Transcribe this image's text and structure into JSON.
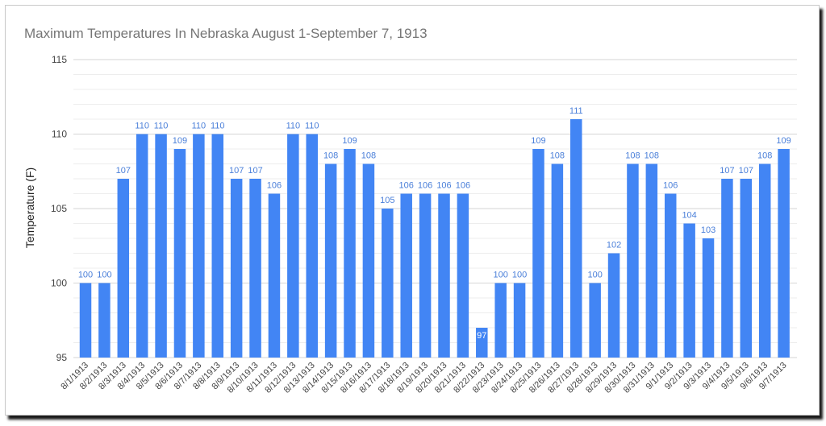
{
  "chart_data": {
    "type": "bar",
    "title": "Maximum Temperatures In Nebraska August 1-September 7, 1913",
    "xlabel": "",
    "ylabel": "Temperature (F)",
    "ylim": [
      95,
      115
    ],
    "yticks": [
      "95",
      "100",
      "105",
      "110",
      "115"
    ],
    "grid": true,
    "legend": "none",
    "bar_color": "#4285f4",
    "label_color": "#4a7fd9",
    "categories": [
      "8/1/1913",
      "8/2/1913",
      "8/3/1913",
      "8/4/1913",
      "8/5/1913",
      "8/6/1913",
      "8/7/1913",
      "8/8/1913",
      "8/9/1913",
      "8/10/1913",
      "8/11/1913",
      "8/12/1913",
      "8/13/1913",
      "8/14/1913",
      "8/15/1913",
      "8/16/1913",
      "8/17/1913",
      "8/18/1913",
      "8/19/1913",
      "8/20/1913",
      "8/21/1913",
      "8/22/1913",
      "8/23/1913",
      "8/24/1913",
      "8/25/1913",
      "8/26/1913",
      "8/27/1913",
      "8/28/1913",
      "8/29/1913",
      "8/30/1913",
      "8/31/1913",
      "9/1/1913",
      "9/2/1913",
      "9/3/1913",
      "9/4/1913",
      "9/5/1913",
      "9/6/1913",
      "9/7/1913"
    ],
    "values": [
      100,
      100,
      107,
      110,
      110,
      109,
      110,
      110,
      107,
      107,
      106,
      110,
      110,
      108,
      109,
      108,
      105,
      106,
      106,
      106,
      106,
      97,
      100,
      100,
      109,
      108,
      111,
      100,
      102,
      108,
      108,
      106,
      104,
      103,
      107,
      107,
      108,
      109
    ]
  }
}
